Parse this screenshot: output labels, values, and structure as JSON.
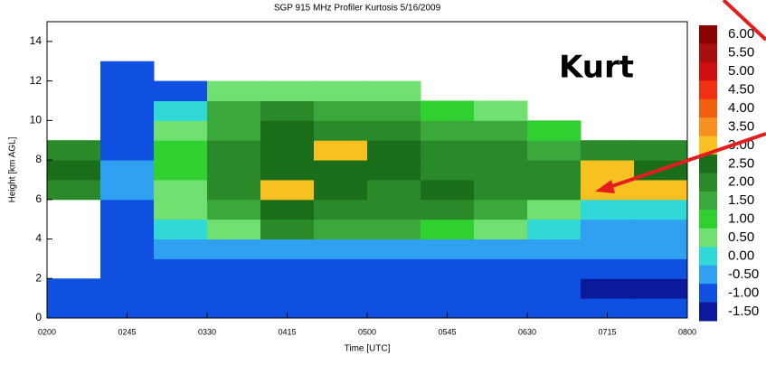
{
  "chart_data": {
    "type": "heatmap",
    "title": "SGP 915 MHz Profiler Kurtosis  5/16/2009",
    "annotation": "Kurt",
    "xlabel": "Time [UTC]",
    "ylabel": "Height [km AGL]",
    "xlim": [
      2,
      8
    ],
    "ylim": [
      0,
      15
    ],
    "xticks": [
      {
        "value": 2,
        "label": "0200"
      },
      {
        "value": 2.75,
        "label": "0245"
      },
      {
        "value": 3.5,
        "label": "0330"
      },
      {
        "value": 4.25,
        "label": "0415"
      },
      {
        "value": 5,
        "label": "0500"
      },
      {
        "value": 5.75,
        "label": "0545"
      },
      {
        "value": 6.5,
        "label": "0630"
      },
      {
        "value": 7.25,
        "label": "0715"
      },
      {
        "value": 8,
        "label": "0800"
      }
    ],
    "yticks": [
      0,
      2,
      4,
      6,
      8,
      10,
      12,
      14
    ],
    "x": [
      2.25,
      2.75,
      3.25,
      3.75,
      4.25,
      4.75,
      5.25,
      5.75,
      6.25,
      6.75,
      7.25,
      7.75
    ],
    "y": [
      0.5,
      1.5,
      2.5,
      3.5,
      4.5,
      5.5,
      6.5,
      7.5,
      8.5,
      9.5,
      10.5,
      11.5,
      12.5
    ],
    "z": [
      [
        -1,
        -1,
        -1,
        -1,
        -1,
        -1,
        -1,
        -1,
        -1,
        -1,
        -1,
        -1
      ],
      [
        -1,
        -1,
        -1,
        -1,
        -1,
        -1,
        -1,
        -1,
        -1,
        -1,
        -1.5,
        -1.5
      ],
      [
        null,
        -1,
        -1,
        -1,
        -1,
        -1,
        -1,
        -1,
        -1,
        -1,
        -1,
        -1
      ],
      [
        null,
        -1,
        -0.5,
        -0.5,
        -0.5,
        -0.5,
        -0.5,
        -0.5,
        -0.5,
        -0.5,
        -0.5,
        -0.5
      ],
      [
        null,
        -1,
        0,
        0.5,
        2,
        1.5,
        1.5,
        1,
        0.5,
        0,
        -0.5,
        -0.5
      ],
      [
        null,
        -1,
        0.5,
        1.5,
        2.5,
        2,
        2,
        2,
        1.5,
        0.5,
        0,
        0
      ],
      [
        2,
        -0.5,
        0.5,
        2,
        3,
        2.5,
        2,
        2.5,
        2,
        2,
        3,
        3
      ],
      [
        2.5,
        -0.5,
        1,
        2,
        2.5,
        2.5,
        2.5,
        2,
        2,
        2,
        3,
        2.5
      ],
      [
        2,
        -1,
        1,
        2,
        2.5,
        3,
        2.5,
        2,
        2,
        1.5,
        2,
        2
      ],
      [
        null,
        -1,
        0.5,
        1.5,
        2.5,
        2,
        2,
        1.5,
        1.5,
        1,
        null,
        null
      ],
      [
        null,
        -1,
        0,
        1.5,
        2,
        1.5,
        1.5,
        1,
        0.5,
        null,
        null,
        null
      ],
      [
        null,
        -1,
        -1,
        0.5,
        0.5,
        0.5,
        0.5,
        null,
        null,
        null,
        null,
        null
      ],
      [
        null,
        -1,
        null,
        null,
        null,
        null,
        null,
        null,
        null,
        null,
        null,
        null
      ]
    ],
    "colorbar": {
      "ticks": [
        {
          "value": 6,
          "label": "6.00"
        },
        {
          "value": 5.5,
          "label": "5.50"
        },
        {
          "value": 5,
          "label": "5.00"
        },
        {
          "value": 4.5,
          "label": "4.50"
        },
        {
          "value": 4,
          "label": "4.00"
        },
        {
          "value": 3.5,
          "label": "3.50"
        },
        {
          "value": 3,
          "label": "3.00"
        },
        {
          "value": 2.5,
          "label": "2.50"
        },
        {
          "value": 2,
          "label": "2.00"
        },
        {
          "value": 1.5,
          "label": "1.50"
        },
        {
          "value": 1,
          "label": "1.00"
        },
        {
          "value": 0.5,
          "label": "0.50"
        },
        {
          "value": 0,
          "label": "0.00"
        },
        {
          "value": -0.5,
          "label": "-0.50"
        },
        {
          "value": -1,
          "label": "-1.00"
        },
        {
          "value": -1.5,
          "label": "-1.50"
        }
      ],
      "colors": [
        "#8b0000",
        "#a81010",
        "#d01010",
        "#f03010",
        "#f06010",
        "#f89020",
        "#f8c020",
        "#1a6e1a",
        "#2a8a2a",
        "#3aa83a",
        "#30d030",
        "#70e070",
        "#30d8d8",
        "#30a0f0",
        "#1050e0",
        "#0a1a9a"
      ]
    }
  }
}
